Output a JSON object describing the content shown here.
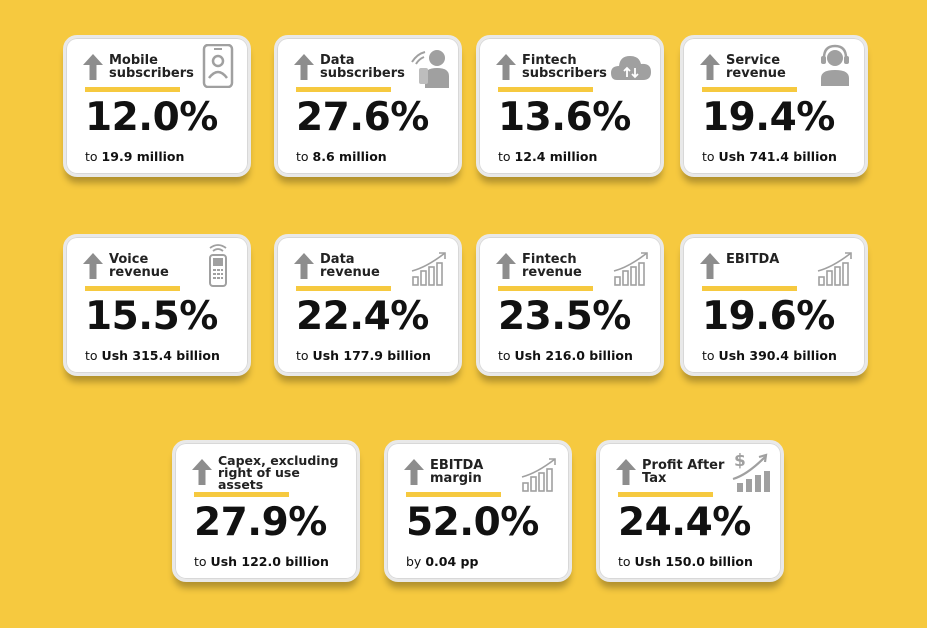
{
  "colors": {
    "background": "#f6c93f",
    "accent": "#f6c93f",
    "arrow": "#8d8d8d",
    "icon": "#a0a0a0"
  },
  "cards": [
    {
      "title": "Mobile subscribers",
      "value": "12.0%",
      "prefix": "to",
      "amount": "19.9 million",
      "icon": "phone-user-icon"
    },
    {
      "title": "Data subscribers",
      "value": "27.6%",
      "prefix": "to",
      "amount": "8.6 million",
      "icon": "wifi-user-icon"
    },
    {
      "title": "Fintech subscribers",
      "value": "13.6%",
      "prefix": "to",
      "amount": "12.4 million",
      "icon": "cloud-transfer-icon"
    },
    {
      "title": "Service revenue",
      "value": "19.4%",
      "prefix": "to",
      "amount": "Ush 741.4 billion",
      "icon": "headset-agent-icon"
    },
    {
      "title": "Voice revenue",
      "value": "15.5%",
      "prefix": "to",
      "amount": "Ush 315.4 billion",
      "icon": "feature-phone-icon"
    },
    {
      "title": "Data revenue",
      "value": "22.4%",
      "prefix": "to",
      "amount": "Ush 177.9 billion",
      "icon": "growth-chart-icon"
    },
    {
      "title": "Fintech revenue",
      "value": "23.5%",
      "prefix": "to",
      "amount": "Ush 216.0 billion",
      "icon": "growth-chart-icon"
    },
    {
      "title": "EBITDA",
      "value": "19.6%",
      "prefix": "to",
      "amount": "Ush 390.4 billion",
      "icon": "growth-chart-icon"
    },
    {
      "title": "Capex, excluding right of use assets",
      "value": "27.9%",
      "prefix": "to",
      "amount": "Ush 122.0 billion",
      "icon": "none"
    },
    {
      "title": "EBITDA margin",
      "value": "52.0%",
      "prefix": "by",
      "amount": "0.04 pp",
      "icon": "growth-chart-icon"
    },
    {
      "title": "Profit After Tax",
      "value": "24.4%",
      "prefix": "to",
      "amount": "Ush 150.0 billion",
      "icon": "dollar-growth-icon"
    }
  ]
}
